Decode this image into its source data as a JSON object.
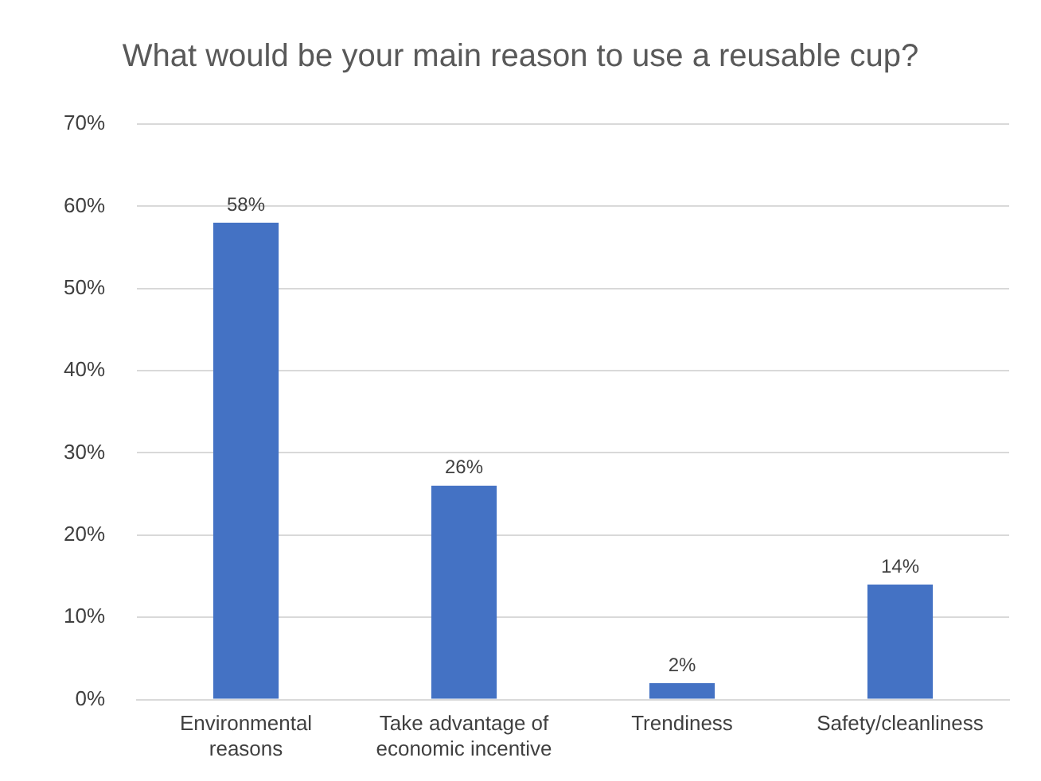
{
  "chart_data": {
    "type": "bar",
    "title": "What would be your main reason to use a reusable cup?",
    "categories": [
      "Environmental reasons",
      "Take advantage of economic incentive",
      "Trendiness",
      "Safety/cleanliness"
    ],
    "values": [
      58,
      26,
      2,
      14
    ],
    "color": "#4472c4",
    "value_labels": [
      "58%",
      "26%",
      "2%",
      "14%"
    ],
    "ylim": [
      0,
      70
    ],
    "yticks": [
      {
        "value": 0,
        "label": "0%"
      },
      {
        "value": 10,
        "label": "10%"
      },
      {
        "value": 20,
        "label": "20%"
      },
      {
        "value": 30,
        "label": "30%"
      },
      {
        "value": 40,
        "label": "40%"
      },
      {
        "value": 50,
        "label": "50%"
      },
      {
        "value": 60,
        "label": "60%"
      },
      {
        "value": 70,
        "label": "70%"
      }
    ],
    "grid": "y"
  }
}
